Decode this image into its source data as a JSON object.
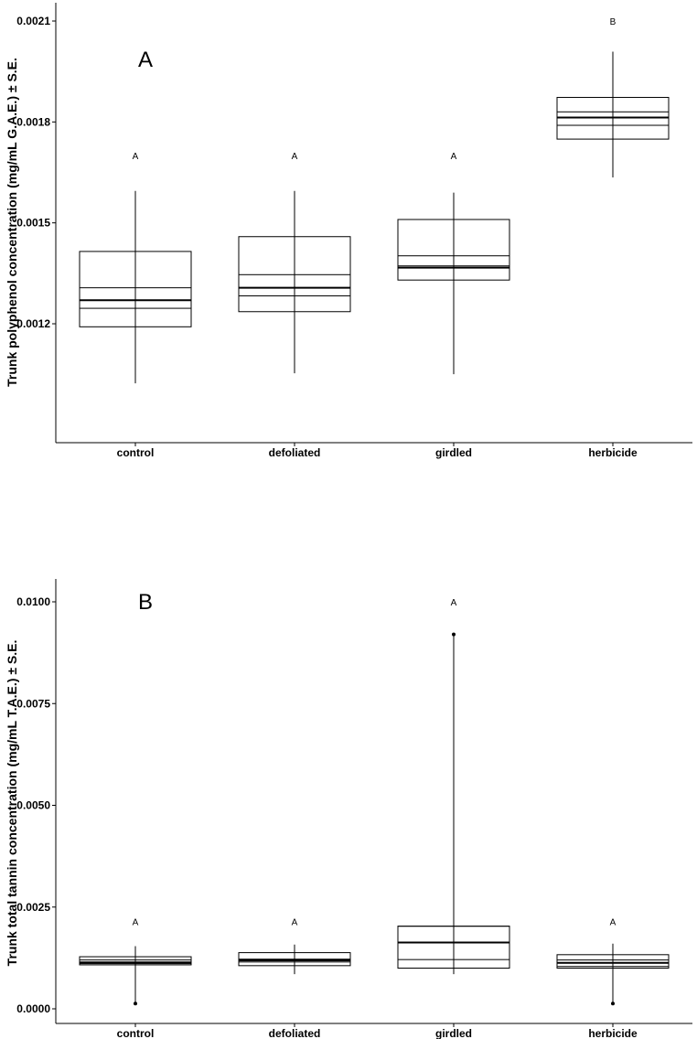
{
  "chart_data": [
    {
      "type": "box",
      "panel_label": "A",
      "ylabel": "Trunk polyphenol concentration (mg/mL G.A.E.) ± S.E.",
      "xlabel": "",
      "categories": [
        "control",
        "defoliated",
        "girdled",
        "herbicide"
      ],
      "ylim": [
        0.00096,
        0.00216
      ],
      "yticks": [
        "0.0012",
        "0.0015",
        "0.0018",
        "0.0021"
      ],
      "ytick_values": [
        0.0012,
        0.0015,
        0.0018,
        0.0021
      ],
      "grid": false,
      "boxes": [
        {
          "category": "control",
          "whisker_low": 0.001023,
          "q1": 0.001191,
          "mean_low": 0.001246,
          "median": 0.00127,
          "mean_high": 0.001307,
          "q3": 0.001415,
          "whisker_high": 0.001595
        },
        {
          "category": "defoliated",
          "whisker_low": 0.001053,
          "q1": 0.001236,
          "mean_low": 0.001283,
          "median": 0.001307,
          "mean_high": 0.001346,
          "q3": 0.001459,
          "whisker_high": 0.001595
        },
        {
          "category": "girdled",
          "whisker_low": 0.00105,
          "q1": 0.00133,
          "mean_low": 0.001372,
          "median": 0.001367,
          "mean_high": 0.001402,
          "q3": 0.00151,
          "whisker_high": 0.00159
        },
        {
          "category": "herbicide",
          "whisker_low": 0.001635,
          "q1": 0.001749,
          "mean_low": 0.00179,
          "median": 0.001813,
          "mean_high": 0.00183,
          "q3": 0.001873,
          "whisker_high": 0.002009
        }
      ],
      "significance_letters": [
        {
          "category": "control",
          "label": "A",
          "y": 0.0017
        },
        {
          "category": "defoliated",
          "label": "A",
          "y": 0.0017
        },
        {
          "category": "girdled",
          "label": "A",
          "y": 0.0017
        },
        {
          "category": "herbicide",
          "label": "B",
          "y": 0.0021
        }
      ],
      "outliers": []
    },
    {
      "type": "box",
      "panel_label": "B",
      "ylabel": "Trunk total tannin concentration (mg/mL T.A.E.) ± S.E.",
      "xlabel": "",
      "categories": [
        "control",
        "defoliated",
        "girdled",
        "herbicide"
      ],
      "ylim": [
        -0.0005,
        0.0105
      ],
      "yticks": [
        "0.0000",
        "0.0025",
        "0.0050",
        "0.0075",
        "0.0100"
      ],
      "ytick_values": [
        0.0,
        0.0025,
        0.005,
        0.0075,
        0.01
      ],
      "grid": false,
      "boxes": [
        {
          "category": "control",
          "whisker_low": 0.00013,
          "q1": 0.00108,
          "mean_low": 0.00111,
          "median": 0.00114,
          "mean_high": 0.0012,
          "q3": 0.00128,
          "whisker_high": 0.00154
        },
        {
          "category": "defoliated",
          "whisker_low": 0.00085,
          "q1": 0.00106,
          "mean_low": 0.00115,
          "median": 0.00119,
          "mean_high": 0.00122,
          "q3": 0.00138,
          "whisker_high": 0.00158
        },
        {
          "category": "girdled",
          "whisker_low": 0.00085,
          "q1": 0.001,
          "mean_low": 0.00121,
          "median": 0.00163,
          "mean_high": 0.00203,
          "q3": 0.00203,
          "whisker_high": 0.0092
        },
        {
          "category": "herbicide",
          "whisker_low": 0.00013,
          "q1": 0.001,
          "mean_low": 0.00104,
          "median": 0.00113,
          "mean_high": 0.0012,
          "q3": 0.00133,
          "whisker_high": 0.0016
        }
      ],
      "significance_letters": [
        {
          "category": "control",
          "label": "A",
          "y": 0.00215
        },
        {
          "category": "defoliated",
          "label": "A",
          "y": 0.00215
        },
        {
          "category": "girdled",
          "label": "A",
          "y": 0.01
        },
        {
          "category": "herbicide",
          "label": "A",
          "y": 0.00215
        }
      ],
      "outliers": [
        {
          "category": "control",
          "value": 0.00013
        },
        {
          "category": "girdled",
          "value": 0.0092
        },
        {
          "category": "herbicide",
          "value": 0.00013
        }
      ]
    }
  ]
}
